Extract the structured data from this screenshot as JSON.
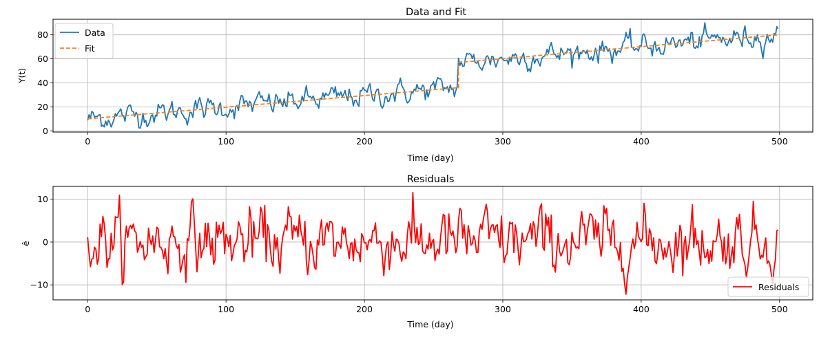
{
  "chart_data": [
    {
      "type": "line",
      "title": "Data and Fit",
      "xlabel": "Time (day)",
      "ylabel": "Y(t)",
      "xlim": [
        -25,
        524
      ],
      "ylim": [
        -1,
        93
      ],
      "xticks": [
        0,
        100,
        200,
        300,
        400,
        500
      ],
      "yticks": [
        0,
        20,
        40,
        60,
        80
      ],
      "grid": true,
      "legend": "top-left",
      "series": [
        {
          "name": "Data",
          "color": "#1f77b4",
          "style": "solid",
          "noise_amp": 4.2
        },
        {
          "name": "Fit",
          "color": "#ff7f0e",
          "style": "dashed",
          "segments": [
            {
              "x0": 0,
              "y0": 10,
              "x1": 268,
              "y1": 36
            },
            {
              "x0": 268,
              "y0": 57,
              "x1": 499,
              "y1": 80
            }
          ]
        }
      ]
    },
    {
      "type": "line",
      "title": "Residuals",
      "xlabel": "Time (day)",
      "ylabel": "ê",
      "xlim": [
        -25,
        524
      ],
      "ylim": [
        -13.5,
        13
      ],
      "xticks": [
        0,
        100,
        200,
        300,
        400,
        500
      ],
      "yticks": [
        -10,
        0,
        10
      ],
      "grid": true,
      "legend": "bottom-right",
      "series": [
        {
          "name": "Residuals",
          "color": "#ff0000",
          "style": "solid",
          "range": [
            -12.2,
            11.6
          ],
          "n_points": 500
        }
      ]
    }
  ]
}
